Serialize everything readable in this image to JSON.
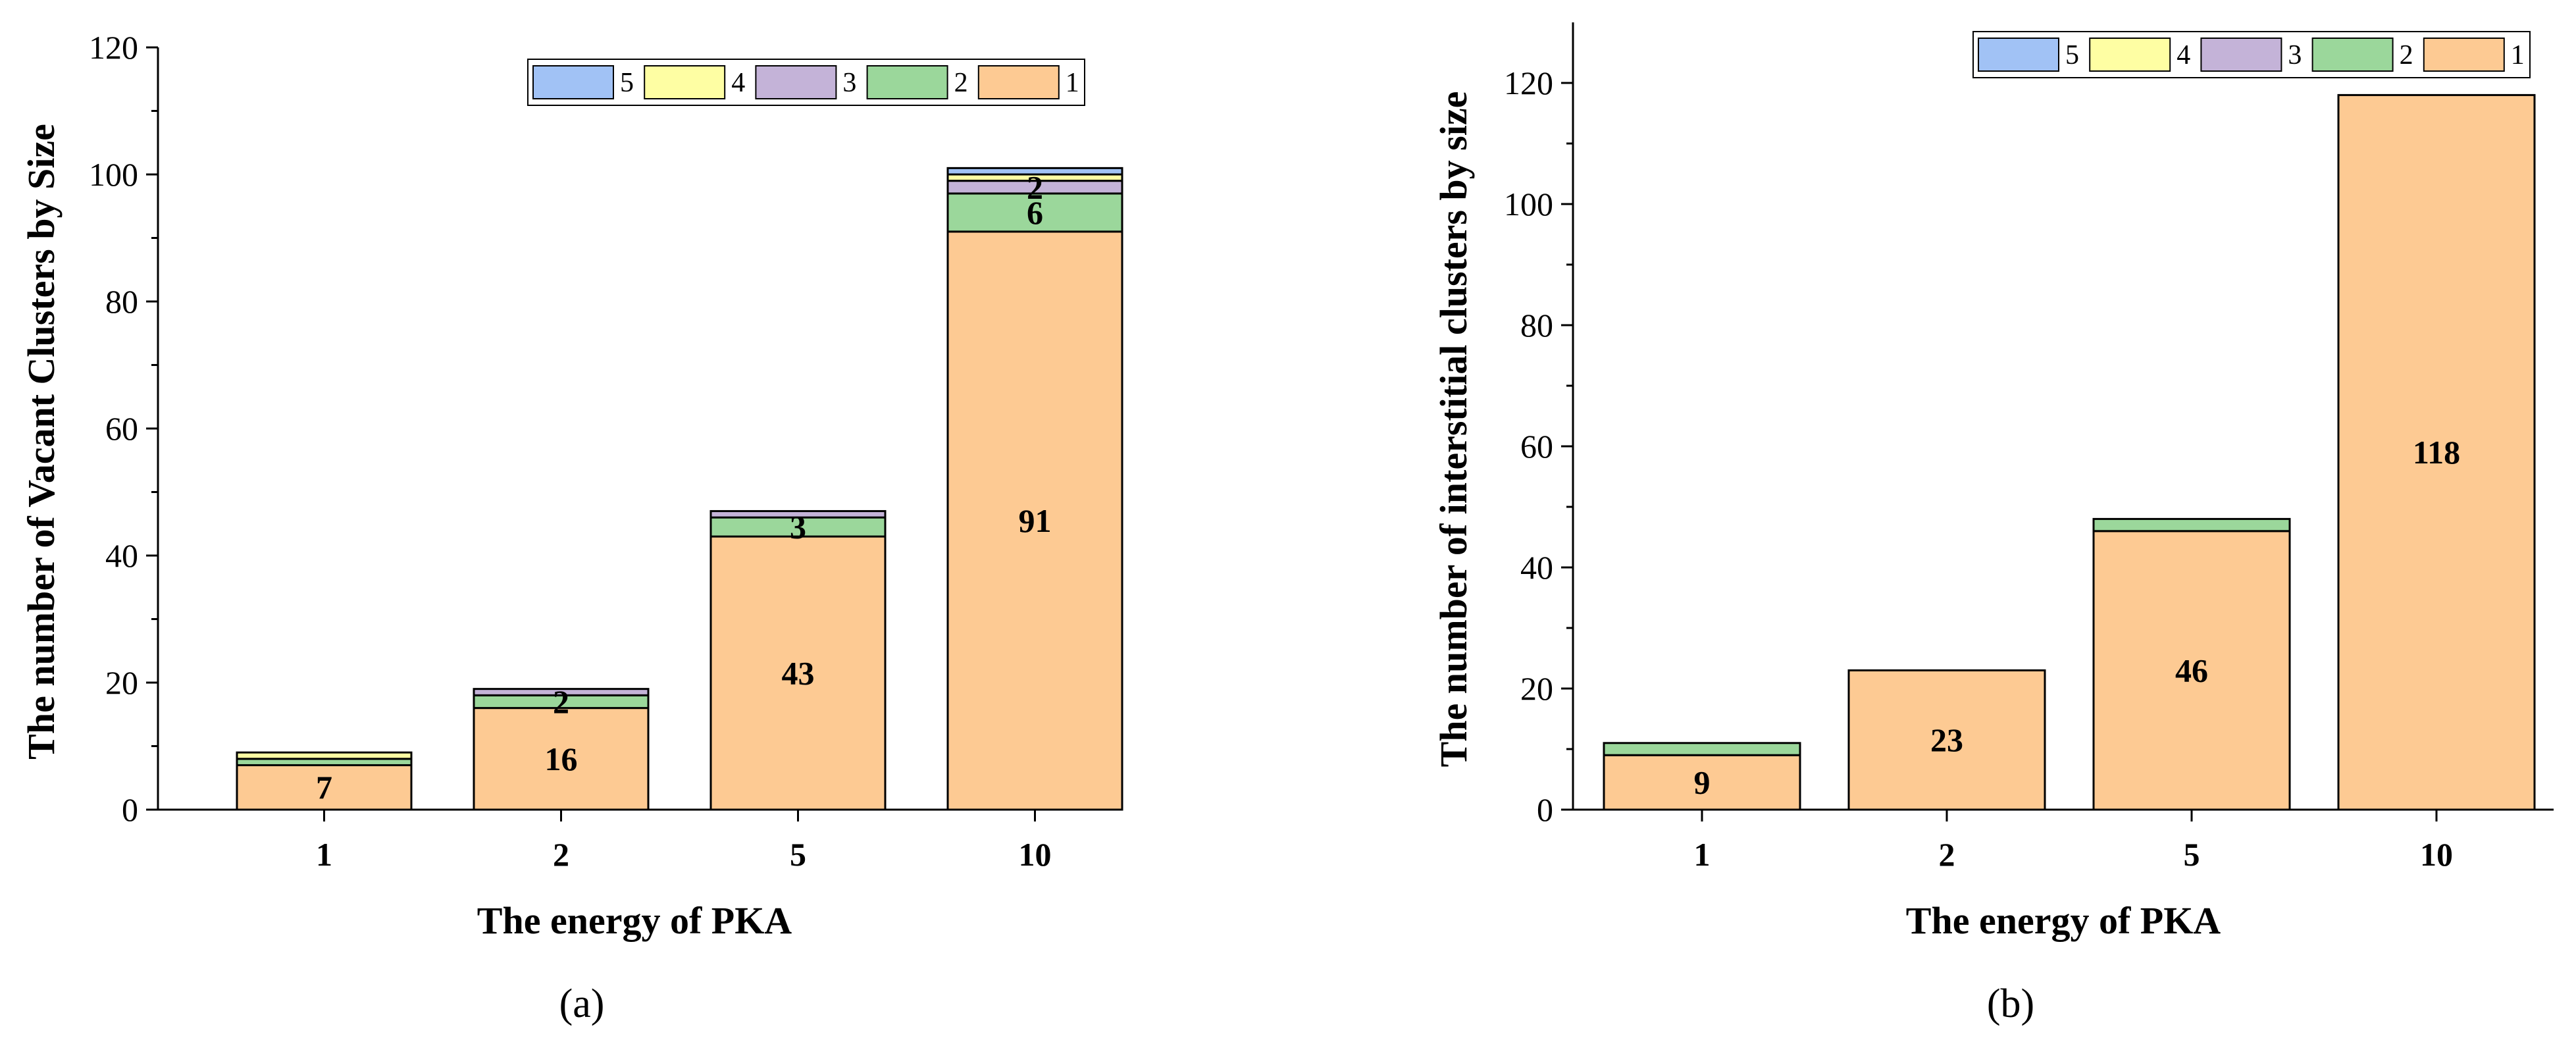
{
  "colors": {
    "1": "#FDCA93",
    "2": "#9BD79B",
    "3": "#C4B3D8",
    "4": "#FEFEA3",
    "5": "#A1C2F5",
    "axis": "#000000"
  },
  "chart_data": [
    {
      "type": "bar",
      "stacked": true,
      "panel_label": "(a)",
      "xlabel": "The energy of PKA",
      "ylabel": "The number of Vacant Clusters by Size",
      "ylim": [
        0,
        120
      ],
      "yticks": [
        "0",
        "20",
        "40",
        "60",
        "80",
        "100",
        "120"
      ],
      "categories": [
        "1",
        "2",
        "5",
        "10"
      ],
      "legend": [
        "5",
        "4",
        "3",
        "2",
        "1"
      ],
      "legend_position": "top-right",
      "series": [
        {
          "name": "1",
          "values": [
            7,
            16,
            43,
            91
          ]
        },
        {
          "name": "2",
          "values": [
            1,
            2,
            3,
            6
          ]
        },
        {
          "name": "3",
          "values": [
            0,
            1,
            1,
            2
          ]
        },
        {
          "name": "4",
          "values": [
            1,
            0,
            0,
            1
          ]
        },
        {
          "name": "5",
          "values": [
            0,
            0,
            0,
            1
          ]
        }
      ],
      "data_labels": [
        {
          "category": "1",
          "series": "1",
          "text": "7"
        },
        {
          "category": "2",
          "series": "1",
          "text": "16"
        },
        {
          "category": "2",
          "series": "2",
          "text": "2"
        },
        {
          "category": "5",
          "series": "1",
          "text": "43"
        },
        {
          "category": "5",
          "series": "2",
          "text": "3"
        },
        {
          "category": "10",
          "series": "1",
          "text": "91"
        },
        {
          "category": "10",
          "series": "2",
          "text": "6"
        },
        {
          "category": "10",
          "series": "3",
          "text": "2"
        }
      ]
    },
    {
      "type": "bar",
      "stacked": true,
      "panel_label": "(b)",
      "xlabel": "The energy of PKA",
      "ylabel": "The number of interstitial clusters by size",
      "ylim": [
        0,
        130
      ],
      "yticks": [
        "0",
        "20",
        "40",
        "60",
        "80",
        "100",
        "120"
      ],
      "categories": [
        "1",
        "2",
        "5",
        "10"
      ],
      "legend": [
        "5",
        "4",
        "3",
        "2",
        "1"
      ],
      "legend_position": "top-right",
      "series": [
        {
          "name": "1",
          "values": [
            9,
            23,
            46,
            118
          ]
        },
        {
          "name": "2",
          "values": [
            2,
            0,
            2,
            0
          ]
        },
        {
          "name": "3",
          "values": [
            0,
            0,
            0,
            0
          ]
        },
        {
          "name": "4",
          "values": [
            0,
            0,
            0,
            0
          ]
        },
        {
          "name": "5",
          "values": [
            0,
            0,
            0,
            0
          ]
        }
      ],
      "data_labels": [
        {
          "category": "1",
          "series": "1",
          "text": "9"
        },
        {
          "category": "2",
          "series": "1",
          "text": "23"
        },
        {
          "category": "5",
          "series": "1",
          "text": "46"
        },
        {
          "category": "10",
          "series": "1",
          "text": "118"
        }
      ]
    }
  ]
}
